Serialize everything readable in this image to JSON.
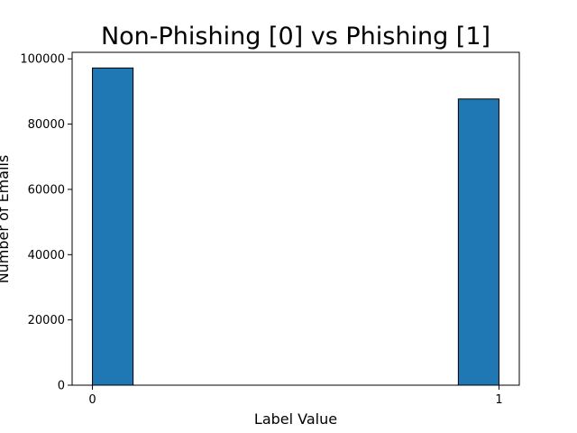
{
  "chart_data": {
    "type": "bar",
    "title": "Non-Phishing [0] vs Phishing [1]",
    "xlabel": "Label Value",
    "ylabel": "Number of Emails",
    "bins": [
      {
        "x_start": 0.0,
        "x_end": 0.1,
        "value": 97200
      },
      {
        "x_start": 0.9,
        "x_end": 1.0,
        "value": 87700
      }
    ],
    "xlim": [
      -0.05,
      1.05
    ],
    "ylim": [
      0,
      102000
    ],
    "x_ticks": [
      {
        "value": 0,
        "label": "0"
      },
      {
        "value": 1,
        "label": "1"
      }
    ],
    "y_ticks": [
      {
        "value": 0,
        "label": "0"
      },
      {
        "value": 20000,
        "label": "20000"
      },
      {
        "value": 40000,
        "label": "40000"
      },
      {
        "value": 60000,
        "label": "60000"
      },
      {
        "value": 80000,
        "label": "80000"
      },
      {
        "value": 100000,
        "label": "100000"
      }
    ],
    "bar_color": "#1f77b4",
    "edge_color": "#000000",
    "grid": false,
    "legend": "none"
  }
}
